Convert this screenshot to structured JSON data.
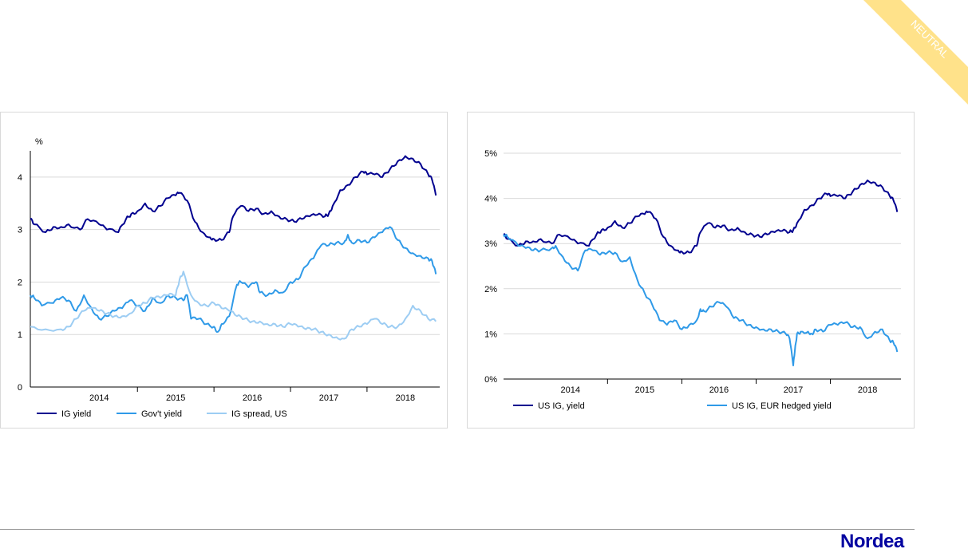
{
  "page": {
    "badge": "NEUTRAL",
    "logo": "Nordea"
  },
  "colors": {
    "dark": "#00008f",
    "mid": "#2f9ae8",
    "light": "#9dcdf3",
    "badge": "#ffe28a",
    "badge_text": "#ffffff"
  },
  "chart_data": [
    {
      "type": "line",
      "ylabel": "%",
      "ylim": [
        0,
        4.5
      ],
      "yticks": [
        0,
        1,
        2,
        3,
        4
      ],
      "xlim": [
        2013.6,
        2018.95
      ],
      "year_labels": [
        "2014",
        "2015",
        "2016",
        "2017",
        "2018"
      ],
      "legend": "bottom",
      "grid": true,
      "series": [
        {
          "name": "IG yield",
          "color": "#00008f",
          "x": [
            2013.6,
            2013.65,
            2013.8,
            2013.9,
            2014.0,
            2014.1,
            2014.25,
            2014.35,
            2014.5,
            2014.6,
            2014.75,
            2014.85,
            2014.92,
            2015.0,
            2015.1,
            2015.2,
            2015.3,
            2015.4,
            2015.5,
            2015.55,
            2015.65,
            2015.75,
            2015.85,
            2015.95,
            2016.0,
            2016.1,
            2016.2,
            2016.25,
            2016.35,
            2016.45,
            2016.55,
            2016.65,
            2016.75,
            2016.85,
            2016.95,
            2017.05,
            2017.15,
            2017.25,
            2017.35,
            2017.45,
            2017.5,
            2017.55,
            2017.65,
            2017.75,
            2017.85,
            2017.95,
            2018.0,
            2018.1,
            2018.2,
            2018.3,
            2018.4,
            2018.5,
            2018.6,
            2018.7,
            2018.8,
            2018.85,
            2018.9
          ],
          "y": [
            3.2,
            3.1,
            2.95,
            3.05,
            3.05,
            3.1,
            3.0,
            3.2,
            3.1,
            3.0,
            2.95,
            3.2,
            3.3,
            3.35,
            3.5,
            3.35,
            3.45,
            3.6,
            3.65,
            3.7,
            3.55,
            3.15,
            2.95,
            2.85,
            2.82,
            2.8,
            2.95,
            3.25,
            3.45,
            3.35,
            3.4,
            3.3,
            3.35,
            3.25,
            3.2,
            3.15,
            3.2,
            3.25,
            3.28,
            3.25,
            3.3,
            3.45,
            3.75,
            3.85,
            4.0,
            4.1,
            4.05,
            4.05,
            4.0,
            4.15,
            4.3,
            4.4,
            4.35,
            4.25,
            4.05,
            3.95,
            3.65
          ]
        },
        {
          "name": "Gov't yield",
          "color": "#2f9ae8",
          "x": [
            2013.6,
            2013.65,
            2013.75,
            2013.9,
            2014.0,
            2014.1,
            2014.2,
            2014.3,
            2014.4,
            2014.5,
            2014.6,
            2014.7,
            2014.8,
            2014.9,
            2015.0,
            2015.1,
            2015.2,
            2015.3,
            2015.4,
            2015.5,
            2015.6,
            2015.65,
            2015.7,
            2015.8,
            2015.9,
            2016.0,
            2016.05,
            2016.1,
            2016.2,
            2016.3,
            2016.35,
            2016.45,
            2016.55,
            2016.6,
            2016.7,
            2016.8,
            2016.9,
            2017.0,
            2017.1,
            2017.2,
            2017.3,
            2017.4,
            2017.5,
            2017.6,
            2017.7,
            2017.75,
            2017.8,
            2017.9,
            2018.0,
            2018.1,
            2018.2,
            2018.3,
            2018.4,
            2018.5,
            2018.6,
            2018.7,
            2018.8,
            2018.85,
            2018.9
          ],
          "y": [
            1.75,
            1.7,
            1.55,
            1.6,
            1.7,
            1.65,
            1.45,
            1.75,
            1.5,
            1.3,
            1.35,
            1.45,
            1.5,
            1.65,
            1.55,
            1.45,
            1.7,
            1.6,
            1.75,
            1.7,
            1.65,
            1.75,
            1.3,
            1.3,
            1.2,
            1.15,
            1.05,
            1.2,
            1.35,
            1.95,
            2.0,
            1.9,
            2.0,
            1.8,
            1.75,
            1.85,
            1.8,
            2.0,
            2.05,
            2.3,
            2.45,
            2.7,
            2.7,
            2.75,
            2.75,
            2.9,
            2.75,
            2.8,
            2.75,
            2.85,
            2.95,
            3.05,
            2.8,
            2.65,
            2.55,
            2.5,
            2.45,
            2.4,
            2.15
          ]
        },
        {
          "name": "IG spread, US",
          "color": "#9dcdf3",
          "x": [
            2013.6,
            2013.8,
            2014.0,
            2014.1,
            2014.2,
            2014.3,
            2014.4,
            2014.5,
            2014.6,
            2014.7,
            2014.8,
            2014.9,
            2015.0,
            2015.1,
            2015.2,
            2015.3,
            2015.4,
            2015.5,
            2015.55,
            2015.6,
            2015.7,
            2015.8,
            2015.9,
            2016.0,
            2016.1,
            2016.2,
            2016.3,
            2016.4,
            2016.5,
            2016.6,
            2016.7,
            2016.8,
            2016.9,
            2017.0,
            2017.1,
            2017.2,
            2017.3,
            2017.4,
            2017.5,
            2017.6,
            2017.7,
            2017.8,
            2017.9,
            2018.0,
            2018.1,
            2018.2,
            2018.3,
            2018.4,
            2018.5,
            2018.6,
            2018.7,
            2018.8,
            2018.9
          ],
          "y": [
            1.15,
            1.1,
            1.1,
            1.15,
            1.3,
            1.45,
            1.5,
            1.45,
            1.4,
            1.35,
            1.35,
            1.4,
            1.55,
            1.6,
            1.7,
            1.7,
            1.75,
            1.75,
            2.05,
            2.2,
            1.75,
            1.6,
            1.55,
            1.6,
            1.5,
            1.45,
            1.35,
            1.3,
            1.25,
            1.25,
            1.2,
            1.2,
            1.15,
            1.2,
            1.15,
            1.1,
            1.1,
            1.05,
            1.0,
            0.95,
            0.92,
            1.1,
            1.15,
            1.2,
            1.3,
            1.2,
            1.15,
            1.15,
            1.3,
            1.55,
            1.45,
            1.3,
            1.25
          ]
        }
      ]
    },
    {
      "type": "line",
      "ylabel": "",
      "ylim": [
        0,
        5
      ],
      "yticks": [
        "0%",
        "1%",
        "2%",
        "3%",
        "4%",
        "5%"
      ],
      "xlim": [
        2013.6,
        2018.95
      ],
      "year_labels": [
        "2014",
        "2015",
        "2016",
        "2017",
        "2018"
      ],
      "legend": "bottom",
      "grid": true,
      "series": [
        {
          "name": "US IG, yield",
          "color": "#00008f",
          "x": [
            2013.6,
            2013.65,
            2013.8,
            2013.9,
            2014.0,
            2014.1,
            2014.25,
            2014.35,
            2014.5,
            2014.6,
            2014.75,
            2014.85,
            2014.92,
            2015.0,
            2015.1,
            2015.2,
            2015.3,
            2015.4,
            2015.5,
            2015.55,
            2015.65,
            2015.75,
            2015.85,
            2015.95,
            2016.0,
            2016.1,
            2016.2,
            2016.25,
            2016.35,
            2016.45,
            2016.55,
            2016.65,
            2016.75,
            2016.85,
            2016.95,
            2017.05,
            2017.15,
            2017.25,
            2017.35,
            2017.45,
            2017.5,
            2017.55,
            2017.65,
            2017.75,
            2017.85,
            2017.95,
            2018.0,
            2018.1,
            2018.2,
            2018.3,
            2018.4,
            2018.5,
            2018.6,
            2018.7,
            2018.8,
            2018.85,
            2018.9
          ],
          "y": [
            3.2,
            3.1,
            2.95,
            3.05,
            3.05,
            3.1,
            3.0,
            3.2,
            3.1,
            3.0,
            2.95,
            3.2,
            3.3,
            3.35,
            3.5,
            3.35,
            3.45,
            3.6,
            3.65,
            3.7,
            3.55,
            3.15,
            2.95,
            2.85,
            2.82,
            2.8,
            2.95,
            3.25,
            3.45,
            3.35,
            3.4,
            3.3,
            3.35,
            3.25,
            3.2,
            3.15,
            3.2,
            3.25,
            3.28,
            3.25,
            3.3,
            3.45,
            3.75,
            3.85,
            4.0,
            4.1,
            4.05,
            4.05,
            4.0,
            4.15,
            4.3,
            4.4,
            4.35,
            4.25,
            4.05,
            3.95,
            3.7
          ]
        },
        {
          "name": "US IG, EUR hedged yield",
          "color": "#2f9ae8",
          "x": [
            2013.6,
            2013.65,
            2013.8,
            2013.9,
            2014.0,
            2014.1,
            2014.25,
            2014.3,
            2014.4,
            2014.5,
            2014.6,
            2014.7,
            2014.8,
            2014.9,
            2015.0,
            2015.1,
            2015.2,
            2015.3,
            2015.4,
            2015.5,
            2015.6,
            2015.7,
            2015.8,
            2015.9,
            2016.0,
            2016.1,
            2016.2,
            2016.25,
            2016.3,
            2016.4,
            2016.5,
            2016.6,
            2016.7,
            2016.8,
            2016.9,
            2017.0,
            2017.1,
            2017.2,
            2017.3,
            2017.4,
            2017.45,
            2017.5,
            2017.52,
            2017.55,
            2017.6,
            2017.7,
            2017.75,
            2017.8,
            2017.9,
            2018.0,
            2018.1,
            2018.2,
            2018.3,
            2018.4,
            2018.5,
            2018.6,
            2018.7,
            2018.8,
            2018.85,
            2018.9
          ],
          "y": [
            3.2,
            3.15,
            2.95,
            2.9,
            2.85,
            2.85,
            2.9,
            2.95,
            2.7,
            2.5,
            2.4,
            2.85,
            2.85,
            2.75,
            2.8,
            2.8,
            2.6,
            2.7,
            2.2,
            1.9,
            1.65,
            1.3,
            1.2,
            1.3,
            1.1,
            1.2,
            1.3,
            1.55,
            1.5,
            1.6,
            1.7,
            1.6,
            1.35,
            1.3,
            1.2,
            1.15,
            1.1,
            1.1,
            1.05,
            1.0,
            0.9,
            0.3,
            0.6,
            1.0,
            1.05,
            1.05,
            1.0,
            1.1,
            1.05,
            1.2,
            1.2,
            1.25,
            1.15,
            1.15,
            0.9,
            1.05,
            1.1,
            0.85,
            0.8,
            0.6
          ]
        }
      ]
    }
  ]
}
